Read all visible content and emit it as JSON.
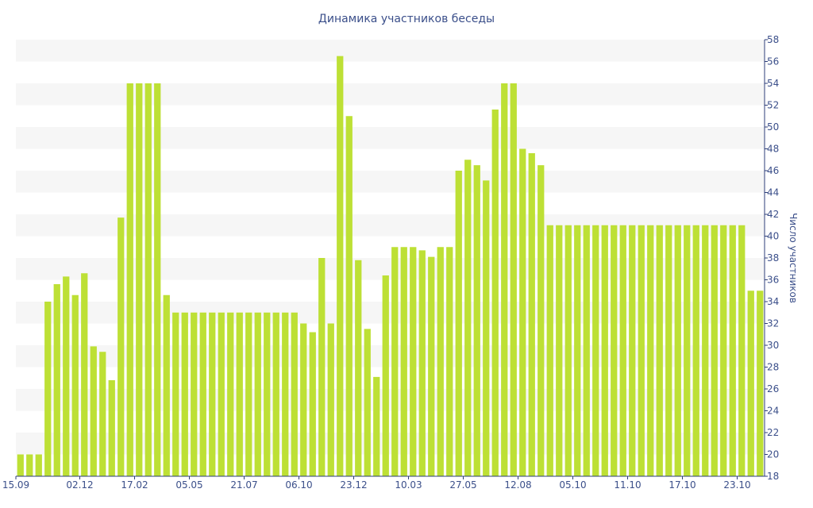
{
  "chart_data": {
    "type": "bar",
    "title": "Динамика участников беседы",
    "xlabel": "",
    "ylabel": "Число участников",
    "ylim": [
      18,
      58
    ],
    "y_ticks": [
      18,
      20,
      22,
      24,
      26,
      28,
      30,
      32,
      34,
      36,
      38,
      40,
      42,
      44,
      46,
      48,
      50,
      52,
      54,
      56,
      58
    ],
    "y_axis_position": "right",
    "grid": "horizontal alternating bands",
    "legend": "none",
    "x_tick_labels": [
      "15.09",
      "02.12",
      "17.02",
      "05.05",
      "21.07",
      "06.10",
      "23.12",
      "10.03",
      "27.05",
      "12.08",
      "05.10",
      "11.10",
      "17.10",
      "23.10"
    ],
    "x_tick_indices": [
      0,
      6.5,
      12.5,
      18.5,
      24.5,
      30.5,
      36.5,
      42.5,
      48.5,
      54.5,
      60.5,
      66.5,
      72.5,
      78.5
    ],
    "values": [
      20,
      20,
      20,
      34,
      35.6,
      36.3,
      34.6,
      36.6,
      29.9,
      29.4,
      26.8,
      41.7,
      54,
      54,
      54,
      54,
      34.6,
      33,
      33,
      33,
      33,
      33,
      33,
      33,
      33,
      33,
      33,
      33,
      33,
      33,
      33,
      32,
      31.2,
      38,
      32,
      56.5,
      51,
      37.8,
      31.5,
      27.1,
      36.4,
      39,
      39,
      39,
      38.7,
      38.1,
      39,
      39,
      46,
      47,
      46.5,
      45.1,
      51.6,
      54,
      54,
      48,
      47.6,
      46.5,
      41,
      41,
      41,
      41,
      41,
      41,
      41,
      41,
      41,
      41,
      41,
      41,
      41,
      41,
      41,
      41,
      41,
      41,
      41,
      41,
      41,
      41,
      35,
      35
    ],
    "colors": {
      "bar": "#bde035",
      "band": "#f6f6f6",
      "text": "#3b4f8a",
      "axis": "#2d3e78"
    }
  }
}
